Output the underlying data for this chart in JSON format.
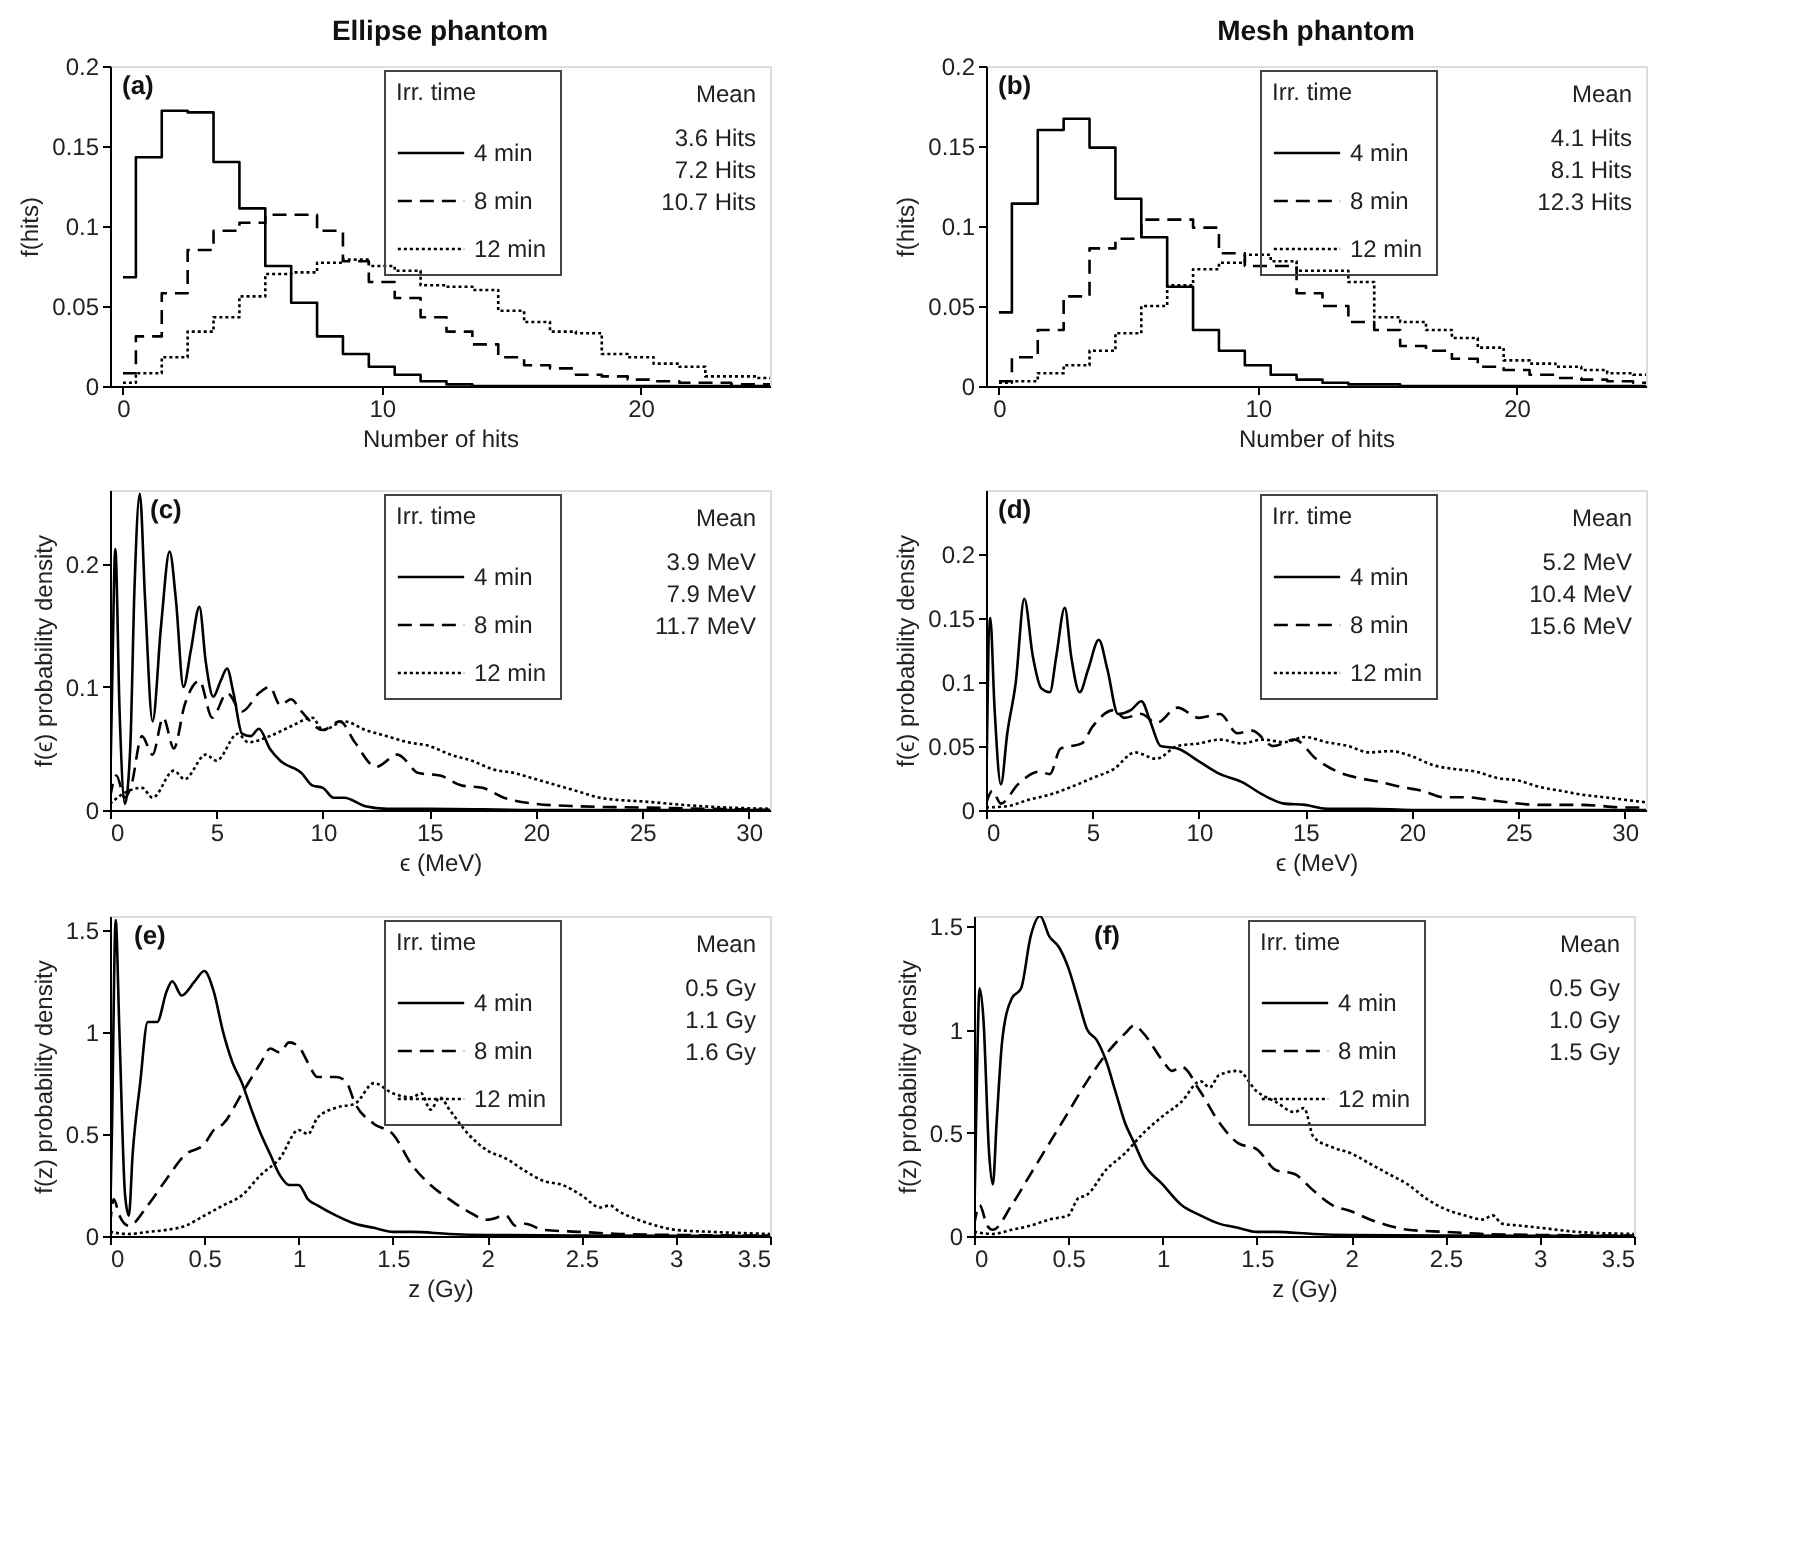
{
  "chart_data": [
    {
      "type": "step",
      "title": "Ellipse phantom",
      "xlabel": "Number of hits",
      "ylabel": "f(hits)",
      "legend_title": "Irr. time",
      "legend": "top right",
      "annotations": [
        "(a)",
        "Mean",
        "3.6 Hits",
        "7.2 Hits",
        "10.7 Hits"
      ],
      "xlim": [
        -0.5,
        25
      ],
      "xticks": [
        0,
        10,
        20
      ],
      "ylim": [
        0,
        0.2
      ],
      "yticks": [
        0,
        0.05,
        0.1,
        0.15,
        0.2
      ],
      "x": [
        0,
        1,
        2,
        3,
        4,
        5,
        6,
        7,
        8,
        9,
        10,
        11,
        12,
        13,
        14,
        15,
        16,
        17,
        18,
        19,
        20,
        21,
        22,
        23,
        24,
        25
      ],
      "series": [
        {
          "name": "4 min",
          "color": "#000000",
          "line_style": "solid",
          "values": [
            0.068,
            0.143,
            0.172,
            0.171,
            0.14,
            0.111,
            0.075,
            0.052,
            0.031,
            0.02,
            0.012,
            0.007,
            0.003,
            0.001,
            0,
            0,
            0,
            0,
            0,
            0,
            0,
            0,
            0,
            0,
            0,
            0
          ]
        },
        {
          "name": "8 min",
          "color": "#000000",
          "line_style": "dashed",
          "values": [
            0.008,
            0.031,
            0.058,
            0.085,
            0.097,
            0.102,
            0.107,
            0.107,
            0.097,
            0.078,
            0.065,
            0.055,
            0.043,
            0.034,
            0.026,
            0.018,
            0.013,
            0.011,
            0.007,
            0.006,
            0.004,
            0.003,
            0.002,
            0.002,
            0.001,
            0.001
          ]
        },
        {
          "name": "12 min",
          "color": "#000000",
          "line_style": "dotted",
          "values": [
            0.002,
            0.008,
            0.018,
            0.034,
            0.043,
            0.056,
            0.07,
            0.071,
            0.077,
            0.079,
            0.075,
            0.072,
            0.063,
            0.062,
            0.06,
            0.047,
            0.04,
            0.034,
            0.033,
            0.02,
            0.018,
            0.014,
            0.012,
            0.006,
            0.006,
            0.005
          ]
        }
      ]
    },
    {
      "type": "step",
      "title": "Mesh phantom",
      "xlabel": "Number of hits",
      "ylabel": "f(hits)",
      "legend_title": "Irr. time",
      "legend": "top right",
      "annotations": [
        "(b)",
        "Mean",
        "4.1 Hits",
        "8.1 Hits",
        "12.3 Hits"
      ],
      "xlim": [
        -0.5,
        25
      ],
      "xticks": [
        0,
        10,
        20
      ],
      "ylim": [
        0,
        0.2
      ],
      "yticks": [
        0,
        0.05,
        0.1,
        0.15,
        0.2
      ],
      "x": [
        0,
        1,
        2,
        3,
        4,
        5,
        6,
        7,
        8,
        9,
        10,
        11,
        12,
        13,
        14,
        15,
        16,
        17,
        18,
        19,
        20,
        21,
        22,
        23,
        24,
        25
      ],
      "series": [
        {
          "name": "4 min",
          "color": "#000000",
          "line_style": "solid",
          "values": [
            0.046,
            0.114,
            0.16,
            0.167,
            0.149,
            0.117,
            0.093,
            0.062,
            0.035,
            0.022,
            0.013,
            0.007,
            0.004,
            0.002,
            0.001,
            0.001,
            0,
            0,
            0,
            0,
            0,
            0,
            0,
            0,
            0,
            0
          ]
        },
        {
          "name": "8 min",
          "color": "#000000",
          "line_style": "dashed",
          "values": [
            0.003,
            0.018,
            0.035,
            0.056,
            0.086,
            0.092,
            0.104,
            0.104,
            0.099,
            0.083,
            0.075,
            0.075,
            0.058,
            0.05,
            0.04,
            0.035,
            0.025,
            0.022,
            0.017,
            0.012,
            0.01,
            0.007,
            0.005,
            0.004,
            0.003,
            0.002
          ]
        },
        {
          "name": "12 min",
          "color": "#000000",
          "line_style": "dotted",
          "values": [
            0.002,
            0.003,
            0.008,
            0.013,
            0.022,
            0.033,
            0.05,
            0.063,
            0.073,
            0.077,
            0.082,
            0.078,
            0.072,
            0.072,
            0.065,
            0.043,
            0.04,
            0.035,
            0.03,
            0.024,
            0.016,
            0.014,
            0.012,
            0.01,
            0.008,
            0.007
          ]
        }
      ]
    },
    {
      "type": "line",
      "xlabel": "ϵ (MeV)",
      "ylabel": "f(ϵ) probability density",
      "legend_title": "Irr. time",
      "legend": "top right",
      "annotations": [
        "(c)",
        "Mean",
        "3.9 MeV",
        "7.9 MeV",
        "11.7 MeV"
      ],
      "xlim": [
        0,
        31
      ],
      "xticks": [
        0,
        5,
        10,
        15,
        20,
        25,
        30
      ],
      "ylim": [
        0,
        0.26
      ],
      "yticks": [
        0,
        0.1,
        0.2
      ],
      "series": [
        {
          "name": "4 min",
          "color": "#000000",
          "line_style": "solid",
          "x": [
            0,
            0.1,
            0.25,
            0.45,
            0.7,
            0.95,
            1.15,
            1.4,
            1.65,
            2.0,
            2.4,
            2.8,
            3.1,
            3.45,
            3.8,
            4.2,
            4.5,
            4.85,
            5.2,
            5.5,
            5.8,
            6.2,
            6.6,
            7.0,
            7.5,
            8,
            9,
            9.5,
            10,
            10.5,
            11,
            12,
            13,
            15,
            20,
            25,
            31
          ],
          "values": [
            0.01,
            0.1,
            0.212,
            0.08,
            0.005,
            0.05,
            0.18,
            0.257,
            0.17,
            0.072,
            0.15,
            0.21,
            0.17,
            0.1,
            0.13,
            0.165,
            0.12,
            0.092,
            0.105,
            0.115,
            0.095,
            0.062,
            0.06,
            0.066,
            0.05,
            0.04,
            0.03,
            0.02,
            0.018,
            0.01,
            0.01,
            0.003,
            0.001,
            0.001,
            0,
            0,
            0
          ]
        },
        {
          "name": "8 min",
          "color": "#000000",
          "line_style": "dashed",
          "x": [
            0,
            0.3,
            0.7,
            1.0,
            1.5,
            2.0,
            2.5,
            3.0,
            3.5,
            4.2,
            4.8,
            5.5,
            6.2,
            7.0,
            7.5,
            8.0,
            8.5,
            9.0,
            10,
            10.8,
            11.5,
            12.5,
            13.5,
            14.5,
            15.5,
            16.5,
            17.5,
            18.5,
            20,
            22,
            25,
            28,
            31
          ],
          "values": [
            0.01,
            0.028,
            0.01,
            0.02,
            0.06,
            0.045,
            0.075,
            0.05,
            0.085,
            0.105,
            0.075,
            0.095,
            0.08,
            0.095,
            0.1,
            0.085,
            0.09,
            0.08,
            0.065,
            0.072,
            0.055,
            0.035,
            0.045,
            0.03,
            0.028,
            0.02,
            0.018,
            0.01,
            0.005,
            0.003,
            0.002,
            0.001,
            0
          ]
        },
        {
          "name": "12 min",
          "color": "#000000",
          "line_style": "dotted",
          "x": [
            0,
            0.5,
            1.5,
            2.0,
            3.0,
            3.5,
            4.5,
            5.0,
            6.0,
            6.5,
            7.5,
            8.5,
            9.5,
            10,
            11,
            12,
            13,
            14,
            15,
            16,
            17,
            18,
            19,
            20,
            21,
            22,
            23,
            24,
            25,
            27,
            29,
            31
          ],
          "values": [
            0.005,
            0.012,
            0.018,
            0.01,
            0.032,
            0.025,
            0.045,
            0.04,
            0.062,
            0.055,
            0.06,
            0.068,
            0.075,
            0.065,
            0.072,
            0.065,
            0.06,
            0.055,
            0.052,
            0.045,
            0.04,
            0.033,
            0.03,
            0.025,
            0.02,
            0.015,
            0.01,
            0.008,
            0.007,
            0.004,
            0.002,
            0.001
          ]
        }
      ]
    },
    {
      "type": "line",
      "xlabel": "ϵ (MeV)",
      "ylabel": "f(ϵ) probability density",
      "legend_title": "Irr. time",
      "legend": "top right",
      "annotations": [
        "(d)",
        "Mean",
        "5.2 MeV",
        "10.4 MeV",
        "15.6 MeV"
      ],
      "xlim": [
        0,
        31
      ],
      "xticks": [
        0,
        5,
        10,
        15,
        20,
        25,
        30
      ],
      "ylim": [
        0,
        0.25
      ],
      "yticks": [
        0,
        0.05,
        0.1,
        0.15,
        0.2
      ],
      "series": [
        {
          "name": "4 min",
          "color": "#000000",
          "line_style": "solid",
          "x": [
            0,
            0.2,
            0.4,
            0.7,
            1.0,
            1.4,
            1.8,
            2.2,
            2.6,
            3.0,
            3.3,
            3.7,
            4.0,
            4.4,
            4.8,
            5.3,
            5.7,
            6.2,
            6.8,
            7.3,
            7.7,
            8.2,
            9,
            10,
            11,
            12,
            13,
            14,
            15,
            16,
            18,
            20,
            31
          ],
          "values": [
            0,
            0.15,
            0.08,
            0.02,
            0.06,
            0.1,
            0.165,
            0.12,
            0.095,
            0.092,
            0.12,
            0.158,
            0.12,
            0.092,
            0.11,
            0.133,
            0.11,
            0.075,
            0.078,
            0.085,
            0.07,
            0.05,
            0.048,
            0.038,
            0.028,
            0.022,
            0.012,
            0.005,
            0.004,
            0.001,
            0.001,
            0,
            0
          ]
        },
        {
          "name": "8 min",
          "color": "#000000",
          "line_style": "dashed",
          "x": [
            0,
            0.3,
            0.7,
            1.5,
            2.5,
            3.0,
            3.5,
            4.5,
            5.0,
            6.0,
            6.5,
            7.3,
            8.0,
            9.0,
            10.0,
            11,
            11.8,
            12.5,
            13.5,
            14.5,
            15.5,
            16.5,
            17.5,
            18.5,
            19.5,
            20.5,
            21.5,
            22.5,
            24,
            26,
            28,
            30,
            31
          ],
          "values": [
            0.005,
            0.015,
            0.005,
            0.02,
            0.03,
            0.028,
            0.048,
            0.052,
            0.065,
            0.078,
            0.072,
            0.075,
            0.068,
            0.08,
            0.072,
            0.075,
            0.06,
            0.062,
            0.05,
            0.055,
            0.04,
            0.03,
            0.025,
            0.022,
            0.018,
            0.015,
            0.01,
            0.01,
            0.007,
            0.004,
            0.004,
            0.002,
            0.002
          ]
        },
        {
          "name": "12 min",
          "color": "#000000",
          "line_style": "dotted",
          "x": [
            0,
            1,
            2,
            3,
            4,
            5,
            6,
            7,
            8,
            9,
            10,
            11,
            12,
            13,
            14,
            15,
            16,
            17,
            18,
            19,
            20,
            21,
            22,
            23,
            24,
            25,
            26,
            27,
            28,
            29,
            30,
            31
          ],
          "values": [
            0.002,
            0.003,
            0.008,
            0.012,
            0.018,
            0.025,
            0.032,
            0.045,
            0.04,
            0.05,
            0.052,
            0.055,
            0.052,
            0.055,
            0.053,
            0.057,
            0.053,
            0.05,
            0.045,
            0.046,
            0.042,
            0.035,
            0.032,
            0.03,
            0.025,
            0.023,
            0.018,
            0.015,
            0.012,
            0.01,
            0.008,
            0.006
          ]
        }
      ]
    },
    {
      "type": "line",
      "xlabel": "z (Gy)",
      "ylabel": "f(z) probability density",
      "legend_title": "Irr. time",
      "legend": "top right",
      "annotations": [
        "(e)",
        "Mean",
        "0.5 Gy",
        "1.1 Gy",
        "1.6 Gy"
      ],
      "xlim": [
        0,
        3.5
      ],
      "xticks": [
        0,
        0.5,
        1,
        1.5,
        2,
        2.5,
        3,
        3.5
      ],
      "ylim": [
        0,
        1.57
      ],
      "yticks": [
        0,
        0.5,
        1,
        1.5
      ],
      "series": [
        {
          "name": "4 min",
          "color": "#000000",
          "line_style": "solid",
          "x": [
            0,
            0.01,
            0.03,
            0.05,
            0.08,
            0.1,
            0.12,
            0.16,
            0.2,
            0.25,
            0.3,
            0.33,
            0.38,
            0.45,
            0.5,
            0.55,
            0.6,
            0.65,
            0.7,
            0.75,
            0.8,
            0.85,
            0.9,
            0.95,
            1.0,
            1.05,
            1.1,
            1.2,
            1.3,
            1.4,
            1.5,
            1.6,
            1.8,
            2.0,
            2.5,
            3.5
          ],
          "values": [
            0.05,
            0.5,
            1.55,
            1.0,
            0.2,
            0.1,
            0.4,
            0.75,
            1.05,
            1.05,
            1.2,
            1.25,
            1.18,
            1.25,
            1.3,
            1.2,
            1.0,
            0.85,
            0.75,
            0.62,
            0.5,
            0.4,
            0.3,
            0.25,
            0.25,
            0.18,
            0.15,
            0.1,
            0.06,
            0.04,
            0.02,
            0.02,
            0.01,
            0.005,
            0.002,
            0
          ]
        },
        {
          "name": "8 min",
          "color": "#000000",
          "line_style": "dashed",
          "x": [
            0,
            0.02,
            0.05,
            0.1,
            0.2,
            0.3,
            0.4,
            0.5,
            0.55,
            0.6,
            0.7,
            0.8,
            0.85,
            0.9,
            0.95,
            1.0,
            1.05,
            1.1,
            1.2,
            1.25,
            1.3,
            1.4,
            1.5,
            1.6,
            1.7,
            1.8,
            1.9,
            2.0,
            2.1,
            2.15,
            2.2,
            2.3,
            2.5,
            2.7,
            3.0,
            3.5
          ],
          "values": [
            0.05,
            0.18,
            0.1,
            0.05,
            0.15,
            0.28,
            0.4,
            0.45,
            0.52,
            0.55,
            0.7,
            0.85,
            0.92,
            0.9,
            0.95,
            0.93,
            0.85,
            0.78,
            0.78,
            0.76,
            0.65,
            0.55,
            0.5,
            0.35,
            0.25,
            0.18,
            0.12,
            0.08,
            0.1,
            0.05,
            0.06,
            0.03,
            0.02,
            0.01,
            0.005,
            0.002
          ]
        },
        {
          "name": "12 min",
          "color": "#000000",
          "line_style": "dotted",
          "x": [
            0,
            0.1,
            0.2,
            0.3,
            0.4,
            0.5,
            0.6,
            0.7,
            0.8,
            0.9,
            1.0,
            1.05,
            1.1,
            1.2,
            1.3,
            1.4,
            1.5,
            1.6,
            1.65,
            1.7,
            1.75,
            1.8,
            1.9,
            2.0,
            2.1,
            2.2,
            2.3,
            2.4,
            2.5,
            2.6,
            2.65,
            2.7,
            2.8,
            2.9,
            3.0,
            3.2,
            3.5
          ],
          "values": [
            0.02,
            0.01,
            0.02,
            0.03,
            0.05,
            0.1,
            0.15,
            0.2,
            0.3,
            0.38,
            0.52,
            0.5,
            0.58,
            0.63,
            0.65,
            0.75,
            0.7,
            0.68,
            0.7,
            0.62,
            0.68,
            0.62,
            0.5,
            0.42,
            0.38,
            0.32,
            0.27,
            0.25,
            0.2,
            0.14,
            0.15,
            0.12,
            0.08,
            0.05,
            0.03,
            0.02,
            0.01
          ]
        }
      ]
    },
    {
      "type": "line",
      "xlabel": "z (Gy)",
      "ylabel": "f(z) probability density",
      "legend_title": "Irr. time",
      "legend": "top right",
      "annotations": [
        "(f)",
        "Mean",
        "0.5 Gy",
        "1.0 Gy",
        "1.5 Gy"
      ],
      "xlim": [
        0,
        3.5
      ],
      "xticks": [
        0,
        0.5,
        1,
        1.5,
        2,
        2.5,
        3,
        3.5
      ],
      "ylim": [
        0,
        1.55
      ],
      "yticks": [
        0,
        0.5,
        1,
        1.5
      ],
      "series": [
        {
          "name": "4 min",
          "color": "#000000",
          "line_style": "solid",
          "x": [
            0,
            0.01,
            0.03,
            0.05,
            0.08,
            0.1,
            0.12,
            0.15,
            0.2,
            0.25,
            0.3,
            0.35,
            0.4,
            0.45,
            0.5,
            0.55,
            0.6,
            0.65,
            0.7,
            0.75,
            0.8,
            0.85,
            0.9,
            1.0,
            1.1,
            1.2,
            1.3,
            1.4,
            1.5,
            1.6,
            1.8,
            2.0,
            2.5,
            3.5
          ],
          "values": [
            0,
            0.5,
            1.2,
            1.05,
            0.4,
            0.25,
            0.55,
            0.95,
            1.15,
            1.2,
            1.45,
            1.55,
            1.45,
            1.4,
            1.3,
            1.15,
            1.0,
            0.95,
            0.85,
            0.7,
            0.55,
            0.45,
            0.35,
            0.25,
            0.15,
            0.1,
            0.06,
            0.04,
            0.02,
            0.02,
            0.01,
            0.005,
            0.002,
            0
          ]
        },
        {
          "name": "8 min",
          "color": "#000000",
          "line_style": "dashed",
          "x": [
            0,
            0.03,
            0.07,
            0.1,
            0.2,
            0.3,
            0.4,
            0.5,
            0.6,
            0.7,
            0.8,
            0.85,
            0.9,
            1.0,
            1.05,
            1.1,
            1.2,
            1.3,
            1.4,
            1.5,
            1.6,
            1.7,
            1.8,
            1.9,
            2.0,
            2.1,
            2.2,
            2.3,
            2.5,
            2.7,
            3.0,
            3.5
          ],
          "values": [
            0.05,
            0.15,
            0.05,
            0.03,
            0.15,
            0.3,
            0.45,
            0.6,
            0.75,
            0.88,
            0.98,
            1.02,
            0.98,
            0.85,
            0.8,
            0.82,
            0.7,
            0.55,
            0.45,
            0.42,
            0.32,
            0.3,
            0.22,
            0.15,
            0.12,
            0.08,
            0.05,
            0.03,
            0.02,
            0.01,
            0.005,
            0.002
          ]
        },
        {
          "name": "12 min",
          "color": "#000000",
          "line_style": "dotted",
          "x": [
            0,
            0.1,
            0.2,
            0.3,
            0.4,
            0.5,
            0.55,
            0.6,
            0.7,
            0.8,
            0.9,
            1.0,
            1.1,
            1.2,
            1.25,
            1.3,
            1.4,
            1.5,
            1.6,
            1.7,
            1.75,
            1.8,
            1.9,
            2.0,
            2.1,
            2.2,
            2.3,
            2.4,
            2.5,
            2.6,
            2.7,
            2.75,
            2.8,
            2.9,
            3.0,
            3.2,
            3.5
          ],
          "values": [
            0.02,
            0.01,
            0.03,
            0.05,
            0.08,
            0.1,
            0.18,
            0.2,
            0.32,
            0.4,
            0.5,
            0.58,
            0.65,
            0.75,
            0.72,
            0.78,
            0.8,
            0.7,
            0.65,
            0.6,
            0.62,
            0.48,
            0.43,
            0.4,
            0.35,
            0.3,
            0.25,
            0.18,
            0.13,
            0.1,
            0.08,
            0.1,
            0.06,
            0.05,
            0.04,
            0.02,
            0.01
          ]
        }
      ]
    }
  ]
}
